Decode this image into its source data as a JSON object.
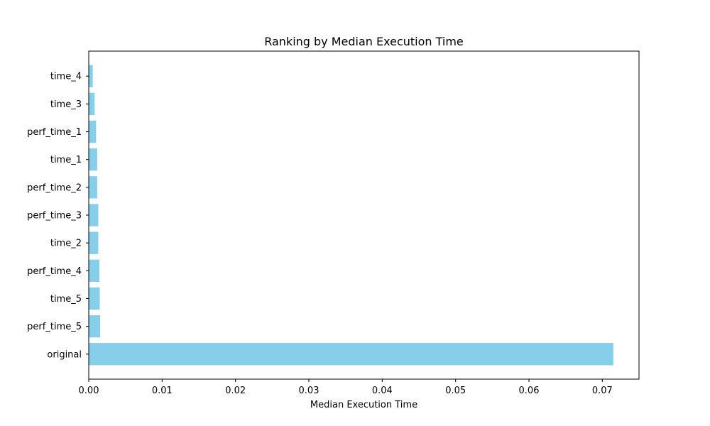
{
  "chart_data": {
    "type": "bar",
    "orientation": "horizontal",
    "title": "Ranking by Median Execution Time",
    "xlabel": "Median Execution Time",
    "ylabel": "",
    "xlim": [
      0,
      0.075
    ],
    "xticks": [
      0.0,
      0.01,
      0.02,
      0.03,
      0.04,
      0.05,
      0.06,
      0.07
    ],
    "xtick_labels": [
      "0.00",
      "0.01",
      "0.02",
      "0.03",
      "0.04",
      "0.05",
      "0.06",
      "0.07"
    ],
    "categories_bottom_to_top": [
      "original",
      "perf_time_5",
      "time_5",
      "perf_time_4",
      "time_2",
      "perf_time_3",
      "perf_time_2",
      "time_1",
      "perf_time_1",
      "time_3",
      "time_4"
    ],
    "values": [
      0.0715,
      0.00155,
      0.0015,
      0.00145,
      0.0013,
      0.0013,
      0.00115,
      0.00115,
      0.001,
      0.0008,
      0.00055
    ],
    "bar_color": "#87ceeb",
    "grid": false,
    "legend": "none"
  }
}
